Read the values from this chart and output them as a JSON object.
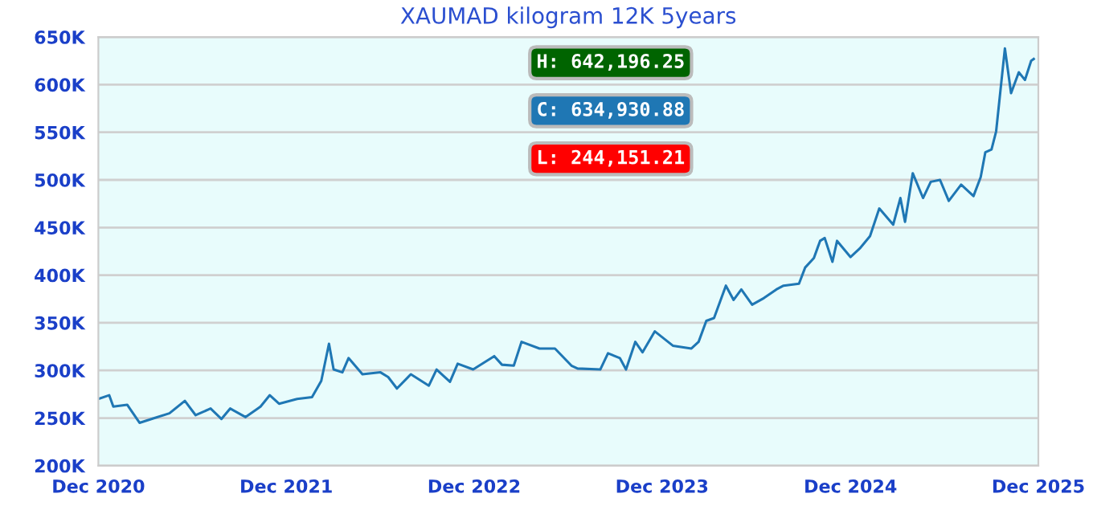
{
  "chart_data": {
    "type": "line",
    "title": "XAUMAD kilogram 12K 5years",
    "x": [
      "2020-12-01",
      "2020-12-22",
      "2020-12-30",
      "2021-01-26",
      "2021-02-19",
      "2021-03-20",
      "2021-04-18",
      "2021-05-18",
      "2021-06-08",
      "2021-07-07",
      "2021-07-28",
      "2021-08-14",
      "2021-09-13",
      "2021-10-12",
      "2021-10-30",
      "2021-11-17",
      "2021-12-22",
      "2022-01-20",
      "2022-02-07",
      "2022-02-22",
      "2022-03-03",
      "2022-03-20",
      "2022-04-01",
      "2022-04-28",
      "2022-06-02",
      "2022-06-17",
      "2022-07-04",
      "2022-07-31",
      "2022-09-04",
      "2022-09-19",
      "2022-10-15",
      "2022-10-30",
      "2022-11-29",
      "2023-01-09",
      "2023-01-24",
      "2023-02-16",
      "2023-03-03",
      "2023-04-07",
      "2023-05-07",
      "2023-06-08",
      "2023-06-20",
      "2023-08-03",
      "2023-08-18",
      "2023-09-10",
      "2023-09-22",
      "2023-10-10",
      "2023-10-24",
      "2023-11-17",
      "2023-12-22",
      "2024-01-27",
      "2024-02-10",
      "2024-02-25",
      "2024-03-11",
      "2024-04-03",
      "2024-04-18",
      "2024-05-03",
      "2024-05-24",
      "2024-06-16",
      "2024-07-10",
      "2024-07-24",
      "2024-08-23",
      "2024-09-04",
      "2024-09-21",
      "2024-10-03",
      "2024-10-12",
      "2024-10-27",
      "2024-11-05",
      "2024-12-01",
      "2024-12-19",
      "2025-01-08",
      "2025-01-26",
      "2025-02-22",
      "2025-03-08",
      "2025-03-17",
      "2025-04-01",
      "2025-04-21",
      "2025-05-06",
      "2025-05-24",
      "2025-06-10",
      "2025-07-04",
      "2025-07-28",
      "2025-08-11",
      "2025-08-20",
      "2025-09-01",
      "2025-09-10",
      "2025-09-27",
      "2025-10-09",
      "2025-10-24",
      "2025-11-05",
      "2025-11-17",
      "2025-11-22"
    ],
    "series": [
      {
        "color": "#1f77b4",
        "values": [
          270000,
          274000,
          262000,
          264000,
          245000,
          250000,
          255000,
          268000,
          253000,
          260000,
          249000,
          260000,
          251000,
          262000,
          274000,
          265000,
          270000,
          272000,
          289000,
          328000,
          301000,
          298000,
          313000,
          296000,
          298000,
          293000,
          281000,
          296000,
          284000,
          301000,
          288000,
          307000,
          301000,
          315000,
          306000,
          305000,
          330000,
          323000,
          323000,
          305000,
          302000,
          301000,
          318000,
          313000,
          301000,
          330000,
          319000,
          341000,
          326000,
          323000,
          330000,
          352000,
          355000,
          389000,
          374000,
          385000,
          369000,
          376000,
          385000,
          389000,
          391000,
          408000,
          418000,
          436000,
          439000,
          414000,
          436000,
          419000,
          428000,
          441000,
          470000,
          453000,
          481000,
          456000,
          507000,
          481000,
          498000,
          500000,
          478000,
          495000,
          483000,
          503000,
          529000,
          532000,
          551000,
          638000,
          591000,
          613000,
          605000,
          625000,
          627000
        ]
      }
    ],
    "xlim": [
      "2020-12-01",
      "2025-12-01"
    ],
    "xticks": [
      {
        "value": "2020-12-01",
        "label": "Dec 2020"
      },
      {
        "value": "2021-12-01",
        "label": "Dec 2021"
      },
      {
        "value": "2022-12-01",
        "label": "Dec 2022"
      },
      {
        "value": "2023-12-01",
        "label": "Dec 2023"
      },
      {
        "value": "2024-12-01",
        "label": "Dec 2024"
      },
      {
        "value": "2025-12-01",
        "label": "Dec 2025"
      }
    ],
    "ylim": [
      200000,
      650000
    ],
    "yticks": [
      {
        "value": 200000,
        "label": "200K"
      },
      {
        "value": 250000,
        "label": "250K"
      },
      {
        "value": 300000,
        "label": "300K"
      },
      {
        "value": 350000,
        "label": "350K"
      },
      {
        "value": 400000,
        "label": "400K"
      },
      {
        "value": 450000,
        "label": "450K"
      },
      {
        "value": 500000,
        "label": "500K"
      },
      {
        "value": 550000,
        "label": "550K"
      },
      {
        "value": 600000,
        "label": "600K"
      },
      {
        "value": 650000,
        "label": "650K"
      }
    ],
    "grid": true,
    "annotations": [
      "H: 642,196.25",
      "C: 634,930.88",
      "L: 244,151.21"
    ]
  }
}
